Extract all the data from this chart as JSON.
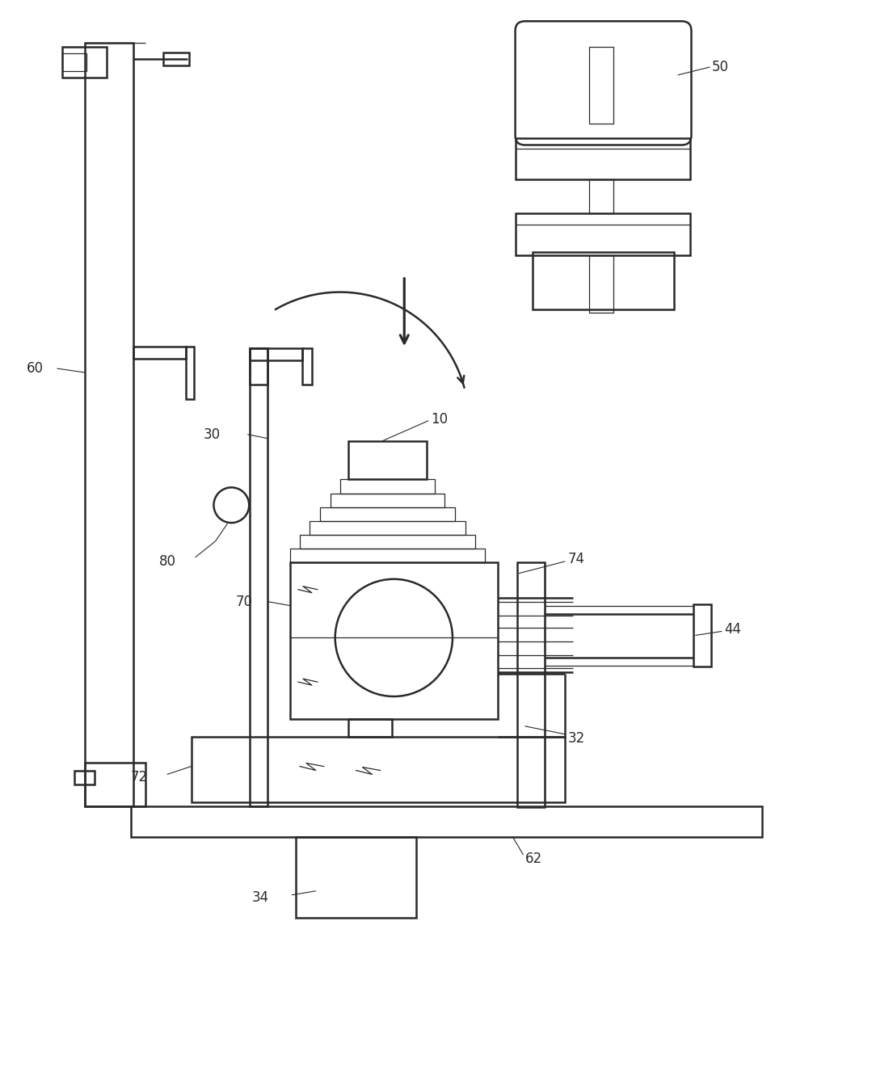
{
  "bg_color": "#ffffff",
  "line_color": "#2a2a2a",
  "lw": 1.8,
  "tlw": 0.9,
  "fs": 12,
  "fig_width": 11.05,
  "fig_height": 13.43
}
